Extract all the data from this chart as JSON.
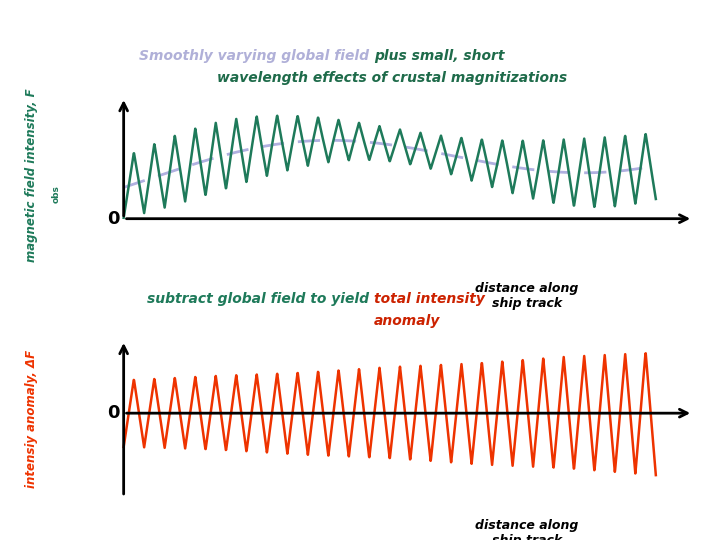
{
  "title1_part1": "Smoothly varying global field ",
  "title1_part2": "plus small, short\nwavelength effects of crustal magnitizations",
  "title2_part1": "subtract global field to yield ",
  "title2_part2": "total intensity\nanomaly",
  "ylabel1_main": "magnetic field intensity, F",
  "ylabel1_sub": "obs",
  "ylabel2": "intensiy anomaly, ΔF",
  "xlabel": "distance along\nship track",
  "smooth_color": "#b0b0e0",
  "jagged_color": "#1e7a5a",
  "anomaly_color": "#ee3300",
  "bg_color": "#ffffff",
  "title1_color1": "#b0b0d8",
  "title1_color2": "#1e6b4a",
  "title2_color1": "#1e7a5a",
  "title2_color2": "#cc2200",
  "axis_color": "#000000",
  "zero_label_color": "#000000"
}
